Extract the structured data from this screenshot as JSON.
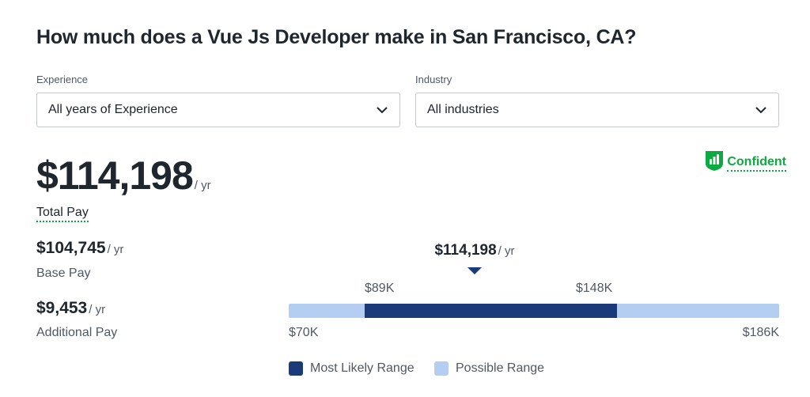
{
  "title": "How much does a Vue Js Developer make in San Francisco, CA?",
  "filters": {
    "experience": {
      "label": "Experience",
      "value": "All years of Experience"
    },
    "industry": {
      "label": "Industry",
      "value": "All industries"
    }
  },
  "confidence": {
    "label": "Confident",
    "icon": "bar-chart-shield-icon"
  },
  "total_pay": {
    "amount": "$114,198",
    "unit": "/ yr",
    "label": "Total Pay"
  },
  "base_pay": {
    "amount": "$104,745",
    "unit": "/ yr",
    "label": "Base Pay"
  },
  "additional_pay": {
    "amount": "$9,453",
    "unit": "/ yr",
    "label": "Additional Pay"
  },
  "range": {
    "median": "$114,198",
    "median_unit": "/ yr",
    "likely_low": "$89K",
    "likely_high": "$148K",
    "possible_low": "$70K",
    "possible_high": "$186K"
  },
  "legend": {
    "likely": "Most Likely Range",
    "possible": "Possible Range"
  },
  "colors": {
    "likely": "#1a3a7a",
    "possible": "#b4cef2",
    "accent": "#0caa41"
  }
}
